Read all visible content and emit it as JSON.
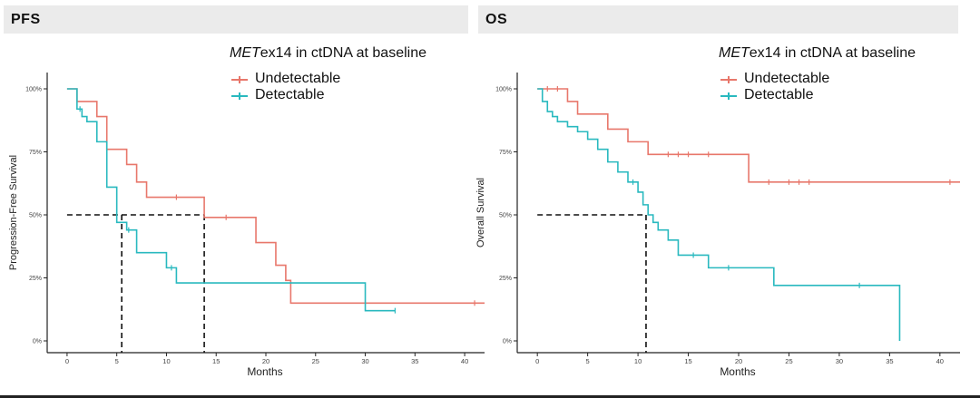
{
  "panels": {
    "pfs": {
      "header": "PFS"
    },
    "os": {
      "header": "OS"
    }
  },
  "legend": {
    "title_italic": "MET",
    "title_rest": "ex14 in ctDNA at baseline",
    "items": [
      "Undetectable",
      "Detectable"
    ]
  },
  "colors": {
    "undetectable": "#e8776b",
    "detectable": "#29b9bf",
    "median_line": "#111111",
    "axis": "#222222"
  },
  "chart_data": [
    {
      "type": "line",
      "title": "PFS",
      "xlabel": "Months",
      "ylabel": "Progression-Free Survival",
      "xlim": [
        -2,
        42
      ],
      "ylim": [
        0,
        1
      ],
      "xticks": [
        0,
        5,
        10,
        15,
        20,
        25,
        30,
        35,
        40
      ],
      "yticks": [
        0,
        0.25,
        0.5,
        0.75,
        1.0
      ],
      "ytick_labels": [
        "0%",
        "25%",
        "50%",
        "75%",
        "100%"
      ],
      "median_reference": {
        "y": 0.5,
        "medians": [
          5.5,
          13.8
        ]
      },
      "series": [
        {
          "name": "Undetectable",
          "x": [
            0,
            1,
            3,
            4,
            6,
            7,
            8,
            13.8,
            19,
            21,
            22,
            22.5,
            42
          ],
          "y": [
            1.0,
            0.95,
            0.89,
            0.76,
            0.7,
            0.63,
            0.57,
            0.49,
            0.39,
            0.3,
            0.24,
            0.15,
            0.15
          ],
          "censored": [
            [
              11,
              0.57
            ],
            [
              16,
              0.49
            ],
            [
              41,
              0.15
            ]
          ]
        },
        {
          "name": "Detectable",
          "x": [
            0,
            1,
            1.5,
            2,
            3,
            4,
            5,
            6,
            7,
            10,
            11,
            30,
            33
          ],
          "y": [
            1.0,
            0.92,
            0.89,
            0.87,
            0.79,
            0.61,
            0.47,
            0.44,
            0.35,
            0.29,
            0.23,
            0.12,
            0.12
          ],
          "censored": [
            [
              1.3,
              0.92
            ],
            [
              6.2,
              0.44
            ],
            [
              10.5,
              0.29
            ],
            [
              33,
              0.12
            ]
          ]
        }
      ]
    },
    {
      "type": "line",
      "title": "OS",
      "xlabel": "Months",
      "ylabel": "Overall Survival",
      "xlim": [
        -2,
        42
      ],
      "ylim": [
        0,
        1
      ],
      "xticks": [
        0,
        5,
        10,
        15,
        20,
        25,
        30,
        35,
        40
      ],
      "yticks": [
        0,
        0.25,
        0.5,
        0.75,
        1.0
      ],
      "ytick_labels": [
        "0%",
        "25%",
        "50%",
        "75%",
        "100%"
      ],
      "median_reference": {
        "y": 0.5,
        "medians": [
          10.8
        ]
      },
      "series": [
        {
          "name": "Undetectable",
          "x": [
            0,
            3,
            4,
            7,
            9,
            11,
            21,
            42
          ],
          "y": [
            1.0,
            0.95,
            0.9,
            0.84,
            0.79,
            0.74,
            0.63,
            0.63
          ],
          "censored": [
            [
              1,
              1.0
            ],
            [
              2,
              1.0
            ],
            [
              13,
              0.74
            ],
            [
              14,
              0.74
            ],
            [
              15,
              0.74
            ],
            [
              17,
              0.74
            ],
            [
              23,
              0.63
            ],
            [
              25,
              0.63
            ],
            [
              26,
              0.63
            ],
            [
              27,
              0.63
            ],
            [
              41,
              0.63
            ]
          ]
        },
        {
          "name": "Detectable",
          "x": [
            0,
            0.5,
            1,
            1.5,
            2,
            3,
            4,
            5,
            6,
            7,
            8,
            9,
            10,
            10.5,
            11,
            11.5,
            12,
            13,
            14,
            17,
            23.5,
            36
          ],
          "y": [
            1.0,
            0.95,
            0.91,
            0.89,
            0.87,
            0.85,
            0.83,
            0.8,
            0.76,
            0.71,
            0.67,
            0.63,
            0.59,
            0.54,
            0.5,
            0.47,
            0.44,
            0.4,
            0.34,
            0.29,
            0.22,
            0.0
          ],
          "censored": [
            [
              9.5,
              0.63
            ],
            [
              15.5,
              0.34
            ],
            [
              19,
              0.29
            ],
            [
              32,
              0.22
            ]
          ]
        }
      ]
    }
  ]
}
